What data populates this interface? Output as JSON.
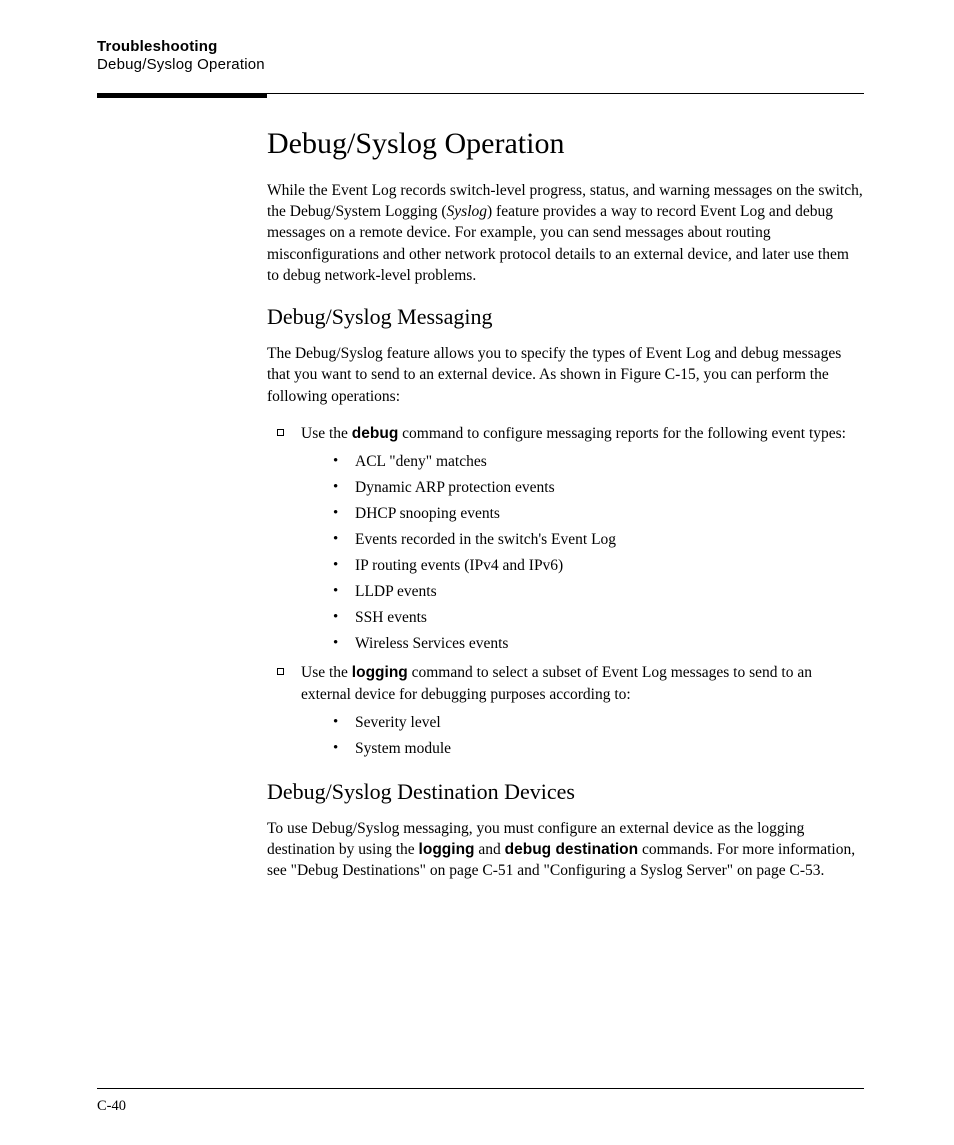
{
  "header": {
    "chapter": "Troubleshooting",
    "section": "Debug/Syslog Operation"
  },
  "title": "Debug/Syslog Operation",
  "intro_parts": {
    "before_italic": "While the Event Log records switch-level progress, status, and warning messages on the switch, the Debug/System Logging (",
    "italic": "Syslog",
    "after_italic": ") feature provides a way to record Event Log and debug messages on a remote device. For example, you can send messages about routing misconfigurations and other network protocol details to an external device, and later use them to debug network-level problems."
  },
  "sec1": {
    "heading": "Debug/Syslog Messaging",
    "intro": "The Debug/Syslog feature allows you to specify the types of Event Log and debug messages that you want to send to an external device. As shown in Figure C-15, you can perform the following operations:",
    "item1": {
      "pre": "Use the ",
      "bold": "debug",
      "post": " command to configure messaging reports for the following event types:"
    },
    "bullets1": [
      "ACL \"deny\" matches",
      "Dynamic ARP protection events",
      "DHCP snooping events",
      "Events recorded in the switch's Event Log",
      "IP routing events (IPv4 and IPv6)",
      "LLDP events",
      "SSH events",
      "Wireless Services events"
    ],
    "item2": {
      "pre": "Use the ",
      "bold": "logging",
      "post": " command to select a subset of Event Log messages to send to an external device for debugging purposes according to:"
    },
    "bullets2": [
      "Severity level",
      "System module"
    ]
  },
  "sec2": {
    "heading": "Debug/Syslog Destination Devices",
    "para": {
      "p1": "To use Debug/Syslog messaging, you must configure an external device as the logging destination by using the ",
      "b1": "logging",
      "p2": " and ",
      "b2": "debug destination",
      "p3": " commands. For more information, see \"Debug Destinations\" on page C-51 and \"Configuring a Syslog Server\" on page C-53."
    }
  },
  "footer": {
    "page": "C-40"
  }
}
